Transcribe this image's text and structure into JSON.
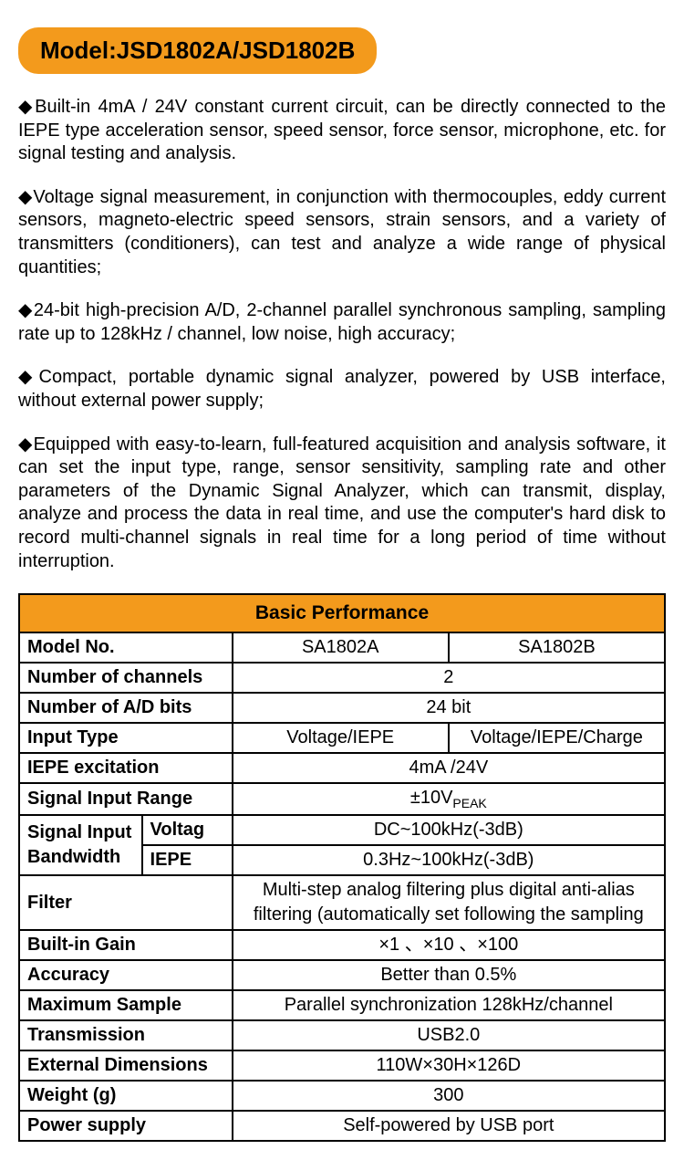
{
  "model_badge": "Model:JSD1802A/JSD1802B",
  "bullets": [
    "Built-in 4mA / 24V constant current circuit, can be directly connected to the IEPE type acceleration sensor, speed sensor, force sensor, microphone, etc. for signal testing and analysis.",
    "Voltage signal measurement, in conjunction with thermocouples, eddy current sensors, magneto-electric speed sensors, strain sensors, and a variety of transmitters (conditioners), can test and analyze a wide range of physical quantities;",
    "24-bit high-precision A/D, 2-channel parallel synchronous sampling, sampling rate up to 128kHz / channel, low noise, high accuracy;",
    "Compact, portable dynamic signal analyzer, powered by USB interface, without external power supply;",
    "Equipped with easy-to-learn, full-featured acquisition and analysis software, it can set the input type, range, sensor sensitivity, sampling rate and other parameters of the Dynamic Signal Analyzer, which can transmit, display, analyze and process the data in real time, and use the computer's hard disk to record multi-channel signals in real time for a long period of time without interruption."
  ],
  "table": {
    "title": "Basic Performance",
    "colors": {
      "header_bg": "#f39a1c",
      "border": "#000000",
      "bg": "#ffffff",
      "text": "#000000"
    },
    "rows": {
      "model_no": {
        "label": "Model No.",
        "a": "SA1802A",
        "b": "SA1802B"
      },
      "channels": {
        "label": "Number of channels",
        "val": "2"
      },
      "ad_bits": {
        "label": "Number of A/D bits",
        "val": "24 bit"
      },
      "input_type": {
        "label": "Input Type",
        "a": "Voltage/IEPE",
        "b": "Voltage/IEPE/Charge"
      },
      "iepe_exc": {
        "label": "IEPE excitation",
        "val": "4mA /24V"
      },
      "sig_range": {
        "label": "Signal Input Range",
        "val_html": "±10V<sub>PEAK</sub>"
      },
      "sib_label": "Signal Input Bandwidth",
      "sib_voltag": {
        "sub": "Voltag",
        "val": "DC~100kHz(-3dB)"
      },
      "sib_iepe": {
        "sub": "IEPE",
        "val": "0.3Hz~100kHz(-3dB)"
      },
      "filter": {
        "label": "Filter",
        "val": "Multi-step analog filtering plus digital anti-alias filtering (automatically set following the sampling"
      },
      "gain": {
        "label": "Built-in Gain",
        "val": "×1 、×10 、×100"
      },
      "accuracy": {
        "label": "Accuracy",
        "val": "Better than 0.5%"
      },
      "max_sample": {
        "label": "Maximum Sample",
        "val": "Parallel synchronization 128kHz/channel"
      },
      "transmission": {
        "label": "Transmission",
        "val": "USB2.0"
      },
      "dims": {
        "label": "External Dimensions",
        "val": "110W×30H×126D"
      },
      "weight": {
        "label": "Weight (g)",
        "val": "300"
      },
      "power": {
        "label": "Power supply",
        "val": "Self-powered by USB port"
      }
    }
  }
}
